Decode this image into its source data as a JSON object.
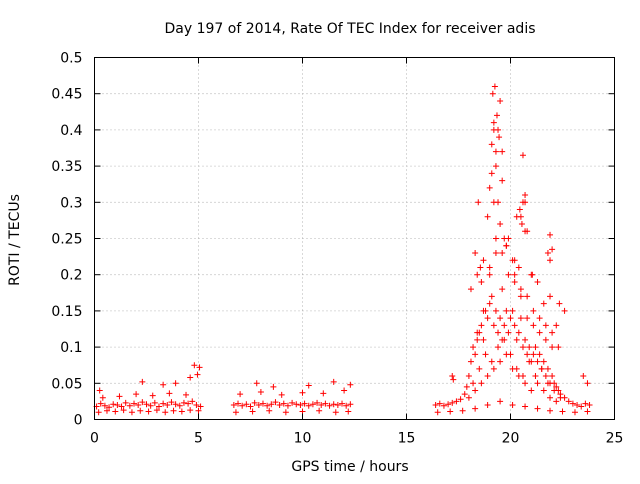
{
  "chart_data": {
    "type": "scatter",
    "title": "Day 197 of 2014, Rate Of TEC Index for receiver adis",
    "xlabel": "GPS time / hours",
    "ylabel": "ROTI / TECUs",
    "xlim": [
      0,
      25
    ],
    "ylim": [
      0,
      0.5
    ],
    "grid": true,
    "marker": "+",
    "x_ticks": [
      0,
      5,
      10,
      15,
      20,
      25
    ],
    "x_tick_labels": [
      "0",
      "5",
      "10",
      "15",
      "20",
      "25"
    ],
    "y_ticks": [
      0,
      0.05,
      0.1,
      0.15,
      0.2,
      0.25,
      0.3,
      0.35,
      0.4,
      0.45,
      0.5
    ],
    "y_tick_labels": [
      "0",
      "0.05",
      "0.1",
      "0.15",
      "0.2",
      "0.25",
      "0.3",
      "0.35",
      "0.4",
      "0.45",
      "0.5"
    ],
    "series": [
      {
        "name": "ROTI",
        "color": "#ff0000",
        "x": [
          0.1,
          0.3,
          0.5,
          0.7,
          0.9,
          1.1,
          1.3,
          1.5,
          1.7,
          1.9,
          2.1,
          2.3,
          2.5,
          2.7,
          2.9,
          3.1,
          3.3,
          3.5,
          3.7,
          3.9,
          4.1,
          4.3,
          4.5,
          4.7,
          4.9,
          5.1,
          0.2,
          0.6,
          1.0,
          1.4,
          1.8,
          2.2,
          2.6,
          3.0,
          3.4,
          3.8,
          4.2,
          4.6,
          5.0,
          0.4,
          1.2,
          2.0,
          2.8,
          3.6,
          4.4,
          2.3,
          3.3,
          3.9,
          4.6,
          4.8,
          4.95,
          5.05,
          0.25,
          6.7,
          6.9,
          7.1,
          7.3,
          7.5,
          7.7,
          7.9,
          8.1,
          8.3,
          8.5,
          8.7,
          8.9,
          9.1,
          9.3,
          9.5,
          9.7,
          9.9,
          10.1,
          10.3,
          10.5,
          10.7,
          10.9,
          11.1,
          11.3,
          11.5,
          11.7,
          11.9,
          12.1,
          12.3,
          6.8,
          7.6,
          8.4,
          9.2,
          10.0,
          10.8,
          11.6,
          12.2,
          7.0,
          8.0,
          9.0,
          10.0,
          11.0,
          12.0,
          7.8,
          8.6,
          10.3,
          11.5,
          12.3,
          16.4,
          16.6,
          16.8,
          17.0,
          17.2,
          17.4,
          17.6,
          17.8,
          17.9,
          18.0,
          18.1,
          18.2,
          18.3,
          18.4,
          18.5,
          18.6,
          18.7,
          18.8,
          18.9,
          19.0,
          19.1,
          19.2,
          19.3,
          19.4,
          19.5,
          19.6,
          19.7,
          19.8,
          19.9,
          20.0,
          20.1,
          20.2,
          20.3,
          20.4,
          20.5,
          20.6,
          20.7,
          20.8,
          20.9,
          21.0,
          21.1,
          21.2,
          21.3,
          21.4,
          21.5,
          21.6,
          21.7,
          21.8,
          21.9,
          22.0,
          22.1,
          22.2,
          22.3,
          22.4,
          22.6,
          22.8,
          23.0,
          23.2,
          23.4,
          23.6,
          23.8,
          16.5,
          17.1,
          17.7,
          18.3,
          18.9,
          19.5,
          20.1,
          20.7,
          21.3,
          21.9,
          22.5,
          23.1,
          23.7,
          18.0,
          18.3,
          18.6,
          18.9,
          19.2,
          19.5,
          19.8,
          20.1,
          20.4,
          20.7,
          21.0,
          21.3,
          21.6,
          21.9,
          22.2,
          18.1,
          18.4,
          18.7,
          19.0,
          19.3,
          19.6,
          19.9,
          20.2,
          20.5,
          20.8,
          21.1,
          21.4,
          21.7,
          22.0,
          22.3,
          18.2,
          18.5,
          18.8,
          19.1,
          19.4,
          19.7,
          20.0,
          20.3,
          20.6,
          20.9,
          21.2,
          21.5,
          21.8,
          22.1,
          22.4,
          18.3,
          18.6,
          18.9,
          19.2,
          19.5,
          19.8,
          20.1,
          20.4,
          20.7,
          21.0,
          21.3,
          21.6,
          21.9,
          22.2,
          18.4,
          18.7,
          19.0,
          19.3,
          19.6,
          19.9,
          20.2,
          20.5,
          20.8,
          21.1,
          21.4,
          21.7,
          22.0,
          19.0,
          19.1,
          19.2,
          19.3,
          19.35,
          19.4,
          19.45,
          19.5,
          19.6,
          19.7,
          19.8,
          20.3,
          20.6,
          21.8,
          21.9,
          18.45,
          18.55,
          20.2,
          20.45,
          20.55,
          20.7,
          20.8,
          21.05,
          22.35,
          22.6,
          19.15,
          19.25,
          19.2,
          19.3,
          19.1,
          19.4,
          19.6,
          20.6,
          20.7,
          20.5,
          21.9,
          22.0,
          17.2,
          17.25,
          23.5,
          23.7
        ],
        "y": [
          0.018,
          0.022,
          0.019,
          0.017,
          0.021,
          0.02,
          0.018,
          0.023,
          0.019,
          0.022,
          0.02,
          0.024,
          0.021,
          0.019,
          0.023,
          0.018,
          0.022,
          0.02,
          0.024,
          0.021,
          0.019,
          0.023,
          0.022,
          0.025,
          0.02,
          0.018,
          0.01,
          0.012,
          0.011,
          0.013,
          0.01,
          0.012,
          0.011,
          0.013,
          0.01,
          0.012,
          0.011,
          0.013,
          0.012,
          0.03,
          0.032,
          0.035,
          0.033,
          0.036,
          0.034,
          0.052,
          0.048,
          0.05,
          0.058,
          0.075,
          0.062,
          0.072,
          0.04,
          0.02,
          0.022,
          0.019,
          0.021,
          0.018,
          0.023,
          0.02,
          0.022,
          0.019,
          0.021,
          0.024,
          0.02,
          0.022,
          0.019,
          0.023,
          0.021,
          0.02,
          0.022,
          0.019,
          0.021,
          0.023,
          0.02,
          0.022,
          0.019,
          0.021,
          0.02,
          0.022,
          0.019,
          0.021,
          0.01,
          0.011,
          0.012,
          0.01,
          0.011,
          0.012,
          0.01,
          0.011,
          0.035,
          0.038,
          0.034,
          0.037,
          0.036,
          0.04,
          0.05,
          0.045,
          0.047,
          0.052,
          0.048,
          0.02,
          0.022,
          0.019,
          0.021,
          0.023,
          0.025,
          0.028,
          0.035,
          0.045,
          0.06,
          0.08,
          0.1,
          0.09,
          0.11,
          0.12,
          0.13,
          0.11,
          0.15,
          0.14,
          0.16,
          0.17,
          0.13,
          0.15,
          0.12,
          0.14,
          0.11,
          0.13,
          0.15,
          0.12,
          0.14,
          0.15,
          0.13,
          0.11,
          0.12,
          0.14,
          0.1,
          0.11,
          0.09,
          0.1,
          0.08,
          0.09,
          0.1,
          0.08,
          0.09,
          0.07,
          0.08,
          0.06,
          0.07,
          0.05,
          0.06,
          0.05,
          0.045,
          0.04,
          0.035,
          0.03,
          0.025,
          0.022,
          0.02,
          0.018,
          0.022,
          0.02,
          0.01,
          0.011,
          0.012,
          0.015,
          0.02,
          0.025,
          0.02,
          0.018,
          0.015,
          0.012,
          0.011,
          0.01,
          0.011,
          0.03,
          0.04,
          0.05,
          0.06,
          0.07,
          0.08,
          0.09,
          0.07,
          0.06,
          0.05,
          0.04,
          0.05,
          0.04,
          0.03,
          0.025,
          0.18,
          0.2,
          0.22,
          0.21,
          0.25,
          0.23,
          0.2,
          0.19,
          0.18,
          0.17,
          0.15,
          0.14,
          0.13,
          0.12,
          0.1,
          0.05,
          0.07,
          0.09,
          0.08,
          0.1,
          0.11,
          0.09,
          0.07,
          0.06,
          0.08,
          0.06,
          0.07,
          0.05,
          0.04,
          0.03,
          0.23,
          0.19,
          0.28,
          0.3,
          0.27,
          0.24,
          0.22,
          0.21,
          0.26,
          0.2,
          0.19,
          0.16,
          0.17,
          0.13,
          0.12,
          0.15,
          0.2,
          0.23,
          0.18,
          0.25,
          0.2,
          0.17,
          0.14,
          0.13,
          0.12,
          0.11,
          0.1,
          0.32,
          0.38,
          0.4,
          0.35,
          0.42,
          0.3,
          0.39,
          0.44,
          0.33,
          0.25,
          0.24,
          0.28,
          0.3,
          0.23,
          0.22,
          0.3,
          0.21,
          0.22,
          0.29,
          0.27,
          0.31,
          0.26,
          0.2,
          0.16,
          0.15,
          0.45,
          0.46,
          0.41,
          0.37,
          0.34,
          0.4,
          0.37,
          0.365,
          0.3,
          0.28,
          0.255,
          0.235,
          0.06,
          0.055,
          0.06,
          0.05
        ]
      }
    ]
  }
}
